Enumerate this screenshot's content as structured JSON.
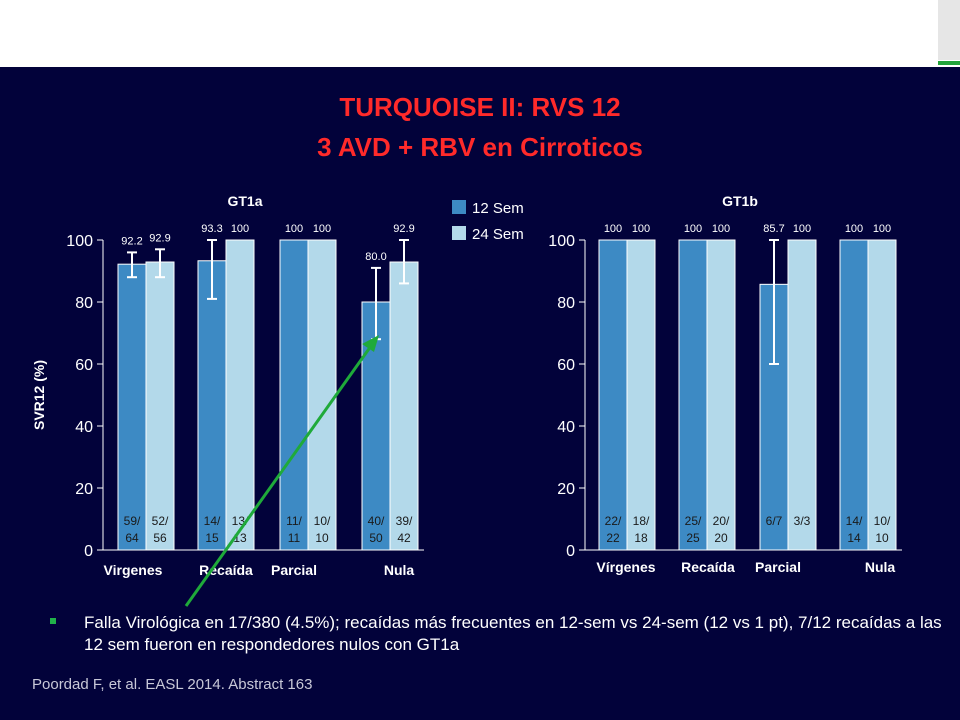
{
  "title_line1": "TURQUOISE II:  RVS 12",
  "title_line2": "3 AVD + RBV en Cirroticos",
  "bullet_text": "Falla Virológica en  17/380  (4.5%); recaídas más frecuentes en 12-sem vs 24-sem (12 vs 1 pt), 7/12 recaídas a las 12 sem fueron  en respondedores nulos con   GT1a",
  "reference": "Poordad F, et al. EASL 2014. Abstract 163",
  "colors": {
    "dark_bar": "#3d8ac4",
    "light_bar": "#b3d9ea",
    "background": "#02023a",
    "title": "#ff2a2a",
    "arrow": "#1faa3a"
  },
  "chart_data": {
    "type": "bar",
    "ylabel": "SVR12 (%)",
    "ylim": [
      0,
      100
    ],
    "yticks": [
      0,
      20,
      40,
      60,
      80,
      100
    ],
    "legend": [
      "12 Sem",
      "24 Sem"
    ],
    "panels": [
      {
        "title": "GT1a",
        "categories": [
          "Virgenes",
          "Recaída",
          "Parcial",
          "Nula"
        ],
        "series": [
          {
            "name": "12 Sem",
            "values": [
              92.2,
              93.3,
              100,
              80.0
            ],
            "labels": [
              "92.2",
              "93.3",
              "100",
              "80.0"
            ],
            "fractions": [
              "59/\n64",
              "14/\n15",
              "11/\n11",
              "40/\n50"
            ],
            "errors": [
              [
                88,
                96
              ],
              [
                81,
                100
              ],
              null,
              [
                68,
                91
              ]
            ]
          },
          {
            "name": "24 Sem",
            "values": [
              92.9,
              100,
              100,
              92.9
            ],
            "labels": [
              "92.9",
              "100",
              "100",
              "92.9"
            ],
            "fractions": [
              "52/\n56",
              "13/\n13",
              "10/\n10",
              "39/\n42"
            ],
            "errors": [
              [
                88,
                97
              ],
              null,
              null,
              [
                86,
                100
              ]
            ]
          }
        ]
      },
      {
        "title": "GT1b",
        "categories": [
          "Vírgenes",
          "Recaída",
          "Parcial",
          "Nula"
        ],
        "series": [
          {
            "name": "12 Sem",
            "values": [
              100,
              100,
              85.7,
              100
            ],
            "labels": [
              "100",
              "100",
              "85.7",
              "100"
            ],
            "fractions": [
              "22/\n22",
              "25/\n25",
              "6/7",
              "14/\n14"
            ],
            "errors": [
              null,
              null,
              [
                60,
                100
              ],
              null
            ]
          },
          {
            "name": "24 Sem",
            "values": [
              100,
              100,
              100,
              100
            ],
            "labels": [
              "100",
              "100",
              "100",
              "100"
            ],
            "fractions": [
              "18/\n18",
              "20/\n20",
              "3/3",
              "10/\n10"
            ],
            "errors": [
              null,
              null,
              null,
              null
            ]
          }
        ]
      }
    ]
  }
}
